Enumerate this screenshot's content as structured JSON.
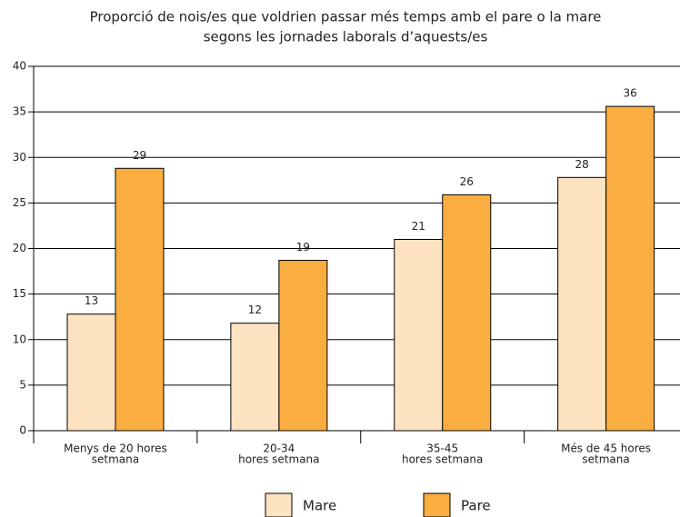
{
  "chart_data": {
    "type": "bar",
    "title": [
      "Proporció de nois/es que voldrien passar més temps amb el pare o la mare",
      "segons les jornades laborals d’aquests/es"
    ],
    "categories": [
      [
        "Menys de 20 hores",
        "setmana"
      ],
      [
        "20-34",
        "hores setmana"
      ],
      [
        "35-45",
        "hores setmana"
      ],
      [
        "Més de 45 hores",
        "setmana"
      ]
    ],
    "series": [
      {
        "name": "Mare",
        "color": "#fde3c0",
        "values": [
          12.8,
          11.8,
          21,
          27.8
        ],
        "value_labels": [
          "13",
          "12",
          "21",
          "28"
        ]
      },
      {
        "name": "Pare",
        "color": "#f9ae3f",
        "values": [
          28.8,
          18.7,
          25.9,
          35.6
        ],
        "value_labels": [
          "29",
          "19",
          "26",
          "36"
        ]
      }
    ],
    "ylim": [
      0,
      40
    ],
    "yticks": [
      0,
      5,
      10,
      15,
      20,
      25,
      30,
      35,
      40
    ],
    "grid": true,
    "legend": "bottom"
  }
}
